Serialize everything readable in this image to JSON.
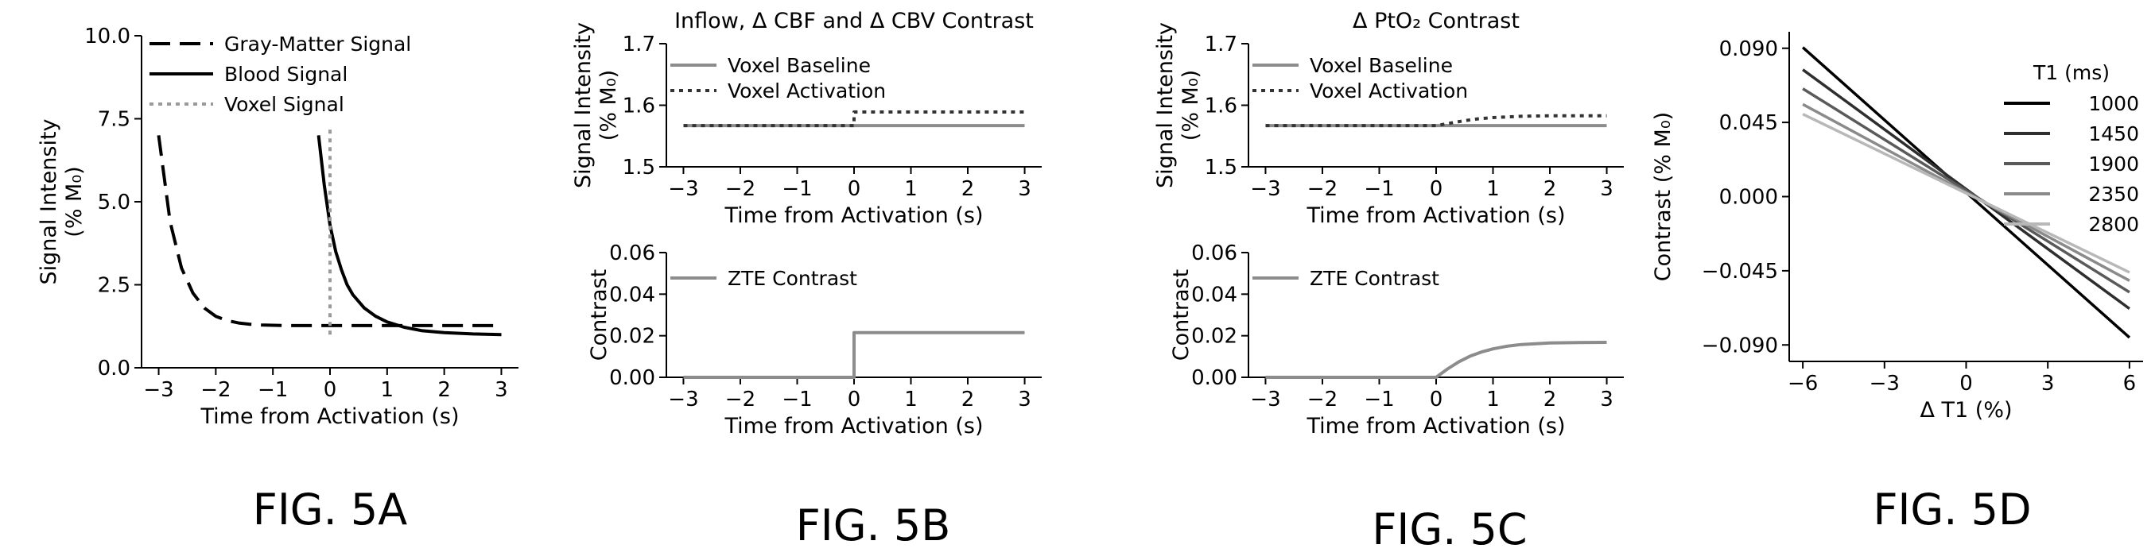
{
  "figure_labels": [
    "FIG. 5A",
    "FIG. 5B",
    "FIG. 5C",
    "FIG. 5D"
  ],
  "chart_data": [
    {
      "id": "5A",
      "type": "line",
      "xlabel": "Time from Activation (s)",
      "ylabel": [
        "Signal Intensity",
        "(% M₀)"
      ],
      "xlim": [
        -3.3,
        3.3
      ],
      "ylim": [
        0,
        10
      ],
      "xticks": [
        -3,
        -2,
        -1,
        0,
        1,
        2,
        3
      ],
      "xtick_labels": [
        "−3",
        "−2",
        "−1",
        "0",
        "1",
        "2",
        "3"
      ],
      "yticks": [
        0,
        2.5,
        5,
        7.5,
        10
      ],
      "ytick_labels": [
        "0.0",
        "2.5",
        "5.0",
        "7.5",
        "10.0"
      ],
      "legend_position": "top-right",
      "series": [
        {
          "name": "Gray-Matter Signal",
          "style": "dashed",
          "color": "#000000",
          "x": [
            -3.0,
            -2.8,
            -2.6,
            -2.4,
            -2.2,
            -2.0,
            -1.8,
            -1.6,
            -1.4,
            -1.2,
            -1.0,
            -0.8,
            -0.5,
            0.0,
            1.0,
            2.0,
            3.0
          ],
          "y": [
            7.0,
            4.4,
            3.0,
            2.25,
            1.8,
            1.55,
            1.42,
            1.35,
            1.31,
            1.29,
            1.28,
            1.27,
            1.27,
            1.27,
            1.27,
            1.27,
            1.27
          ]
        },
        {
          "name": "Blood Signal",
          "style": "solid",
          "color": "#000000",
          "x": [
            -0.2,
            -0.1,
            0.0,
            0.1,
            0.2,
            0.3,
            0.4,
            0.6,
            0.8,
            1.0,
            1.3,
            1.6,
            2.0,
            2.5,
            3.0
          ],
          "y": [
            7.0,
            5.5,
            4.3,
            3.5,
            2.95,
            2.5,
            2.2,
            1.8,
            1.55,
            1.38,
            1.22,
            1.12,
            1.06,
            1.02,
            1.0
          ]
        },
        {
          "name": "Voxel Signal",
          "style": "dotted",
          "color": "#9a9a9a",
          "x": [
            0.0,
            0.0
          ],
          "y": [
            1.0,
            7.2
          ]
        }
      ]
    },
    {
      "id": "5B-top",
      "type": "line",
      "title": "Inflow, Δ CBF and Δ CBV Contrast",
      "xlabel": "Time from Activation (s)",
      "ylabel": [
        "Signal Intensity",
        "(% M₀)"
      ],
      "xlim": [
        -3.3,
        3.3
      ],
      "ylim": [
        1.5,
        1.7
      ],
      "xticks": [
        -3,
        -2,
        -1,
        0,
        1,
        2,
        3
      ],
      "xtick_labels": [
        "−3",
        "−2",
        "−1",
        "0",
        "1",
        "2",
        "3"
      ],
      "yticks": [
        1.5,
        1.6,
        1.7
      ],
      "ytick_labels": [
        "1.5",
        "1.6",
        "1.7"
      ],
      "legend_position": "top-left",
      "series": [
        {
          "name": "Voxel Baseline",
          "style": "solid",
          "color": "#8c8c8c",
          "x": [
            -3,
            3
          ],
          "y": [
            1.567,
            1.567
          ]
        },
        {
          "name": "Voxel Activation",
          "style": "dotted",
          "color": "#333333",
          "x": [
            -3,
            0,
            0,
            3
          ],
          "y": [
            1.567,
            1.567,
            1.589,
            1.589
          ]
        }
      ]
    },
    {
      "id": "5B-bottom",
      "type": "line",
      "xlabel": "Time from Activation (s)",
      "ylabel": [
        "Contrast"
      ],
      "xlim": [
        -3.3,
        3.3
      ],
      "ylim": [
        0,
        0.06
      ],
      "xticks": [
        -3,
        -2,
        -1,
        0,
        1,
        2,
        3
      ],
      "xtick_labels": [
        "−3",
        "−2",
        "−1",
        "0",
        "1",
        "2",
        "3"
      ],
      "yticks": [
        0,
        0.02,
        0.04,
        0.06
      ],
      "ytick_labels": [
        "0.00",
        "0.02",
        "0.04",
        "0.06"
      ],
      "legend_position": "top-left",
      "series": [
        {
          "name": "ZTE Contrast",
          "style": "solid",
          "color": "#8c8c8c",
          "x": [
            -3,
            0,
            0,
            3
          ],
          "y": [
            0,
            0,
            0.0215,
            0.0215
          ]
        }
      ]
    },
    {
      "id": "5C-top",
      "type": "line",
      "title": "Δ PtO₂ Contrast",
      "xlabel": "Time from Activation (s)",
      "ylabel": [
        "Signal Intensity",
        "(% M₀)"
      ],
      "xlim": [
        -3.3,
        3.3
      ],
      "ylim": [
        1.5,
        1.7
      ],
      "xticks": [
        -3,
        -2,
        -1,
        0,
        1,
        2,
        3
      ],
      "xtick_labels": [
        "−3",
        "−2",
        "−1",
        "0",
        "1",
        "2",
        "3"
      ],
      "yticks": [
        1.5,
        1.6,
        1.7
      ],
      "ytick_labels": [
        "1.5",
        "1.6",
        "1.7"
      ],
      "legend_position": "top-left",
      "series": [
        {
          "name": "Voxel Baseline",
          "style": "solid",
          "color": "#8c8c8c",
          "x": [
            -3,
            3
          ],
          "y": [
            1.567,
            1.567
          ]
        },
        {
          "name": "Voxel Activation",
          "style": "dotted",
          "color": "#333333",
          "x": [
            -3,
            0,
            0.25,
            0.5,
            0.75,
            1.0,
            1.5,
            2.0,
            2.5,
            3.0
          ],
          "y": [
            1.567,
            1.567,
            1.571,
            1.575,
            1.578,
            1.58,
            1.582,
            1.583,
            1.583,
            1.583
          ]
        }
      ]
    },
    {
      "id": "5C-bottom",
      "type": "line",
      "xlabel": "Time from Activation (s)",
      "ylabel": [
        "Contrast"
      ],
      "xlim": [
        -3.3,
        3.3
      ],
      "ylim": [
        0,
        0.06
      ],
      "xticks": [
        -3,
        -2,
        -1,
        0,
        1,
        2,
        3
      ],
      "xtick_labels": [
        "−3",
        "−2",
        "−1",
        "0",
        "1",
        "2",
        "3"
      ],
      "yticks": [
        0,
        0.02,
        0.04,
        0.06
      ],
      "ytick_labels": [
        "0.00",
        "0.02",
        "0.04",
        "0.06"
      ],
      "legend_position": "top-left",
      "series": [
        {
          "name": "ZTE Contrast",
          "style": "solid",
          "color": "#8c8c8c",
          "x": [
            -3,
            0,
            0.2,
            0.4,
            0.6,
            0.8,
            1.0,
            1.25,
            1.5,
            2.0,
            2.5,
            3.0
          ],
          "y": [
            0,
            0,
            0.004,
            0.0075,
            0.0102,
            0.0122,
            0.0137,
            0.015,
            0.0158,
            0.0165,
            0.0167,
            0.0168
          ]
        }
      ]
    },
    {
      "id": "5D",
      "type": "line",
      "xlabel": "Δ T1 (%)",
      "ylabel": [
        "Contrast (% M₀)"
      ],
      "xlim": [
        -6.5,
        6.5
      ],
      "ylim": [
        -0.1,
        0.1
      ],
      "xticks": [
        -6,
        -3,
        0,
        3,
        6
      ],
      "xtick_labels": [
        "−6",
        "−3",
        "0",
        "3",
        "6"
      ],
      "yticks": [
        -0.09,
        -0.045,
        0,
        0.045,
        0.09
      ],
      "ytick_labels": [
        "−0.090",
        "−0.045",
        "0.000",
        "0.045",
        "0.090"
      ],
      "legend_title": "T1 (ms)",
      "legend_position": "top-right",
      "series": [
        {
          "name": "1000",
          "color": "#000000",
          "x": [
            -6,
            6
          ],
          "y": [
            0.0905,
            -0.0855
          ]
        },
        {
          "name": "1450",
          "color": "#2e2e2e",
          "x": [
            -6,
            6
          ],
          "y": [
            0.077,
            -0.068
          ]
        },
        {
          "name": "1900",
          "color": "#5a5a5a",
          "x": [
            -6,
            6
          ],
          "y": [
            0.0655,
            -0.058
          ]
        },
        {
          "name": "2350",
          "color": "#8a8a8a",
          "x": [
            -6,
            6
          ],
          "y": [
            0.056,
            -0.051
          ]
        },
        {
          "name": "2800",
          "color": "#b8b8b8",
          "x": [
            -6,
            6
          ],
          "y": [
            0.05,
            -0.046
          ]
        }
      ]
    }
  ]
}
